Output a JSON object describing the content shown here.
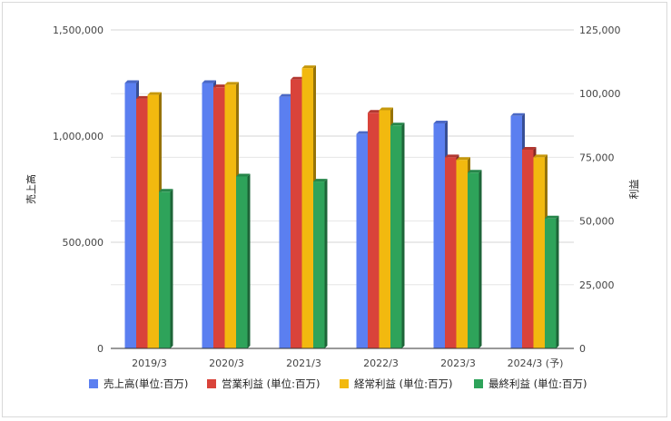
{
  "chart_data": {
    "type": "bar",
    "categories": [
      "2019/3",
      "2020/3",
      "2021/3",
      "2022/3",
      "2023/3",
      "2024/3 (予)"
    ],
    "left_axis": {
      "label": "売上高",
      "ylim": [
        0,
        1500000
      ],
      "ticks": [
        "0",
        "500,000",
        "1,000,000",
        "1,500,000"
      ]
    },
    "right_axis": {
      "label": "利益",
      "ylim": [
        0,
        125000
      ],
      "ticks": [
        "0",
        "25,000",
        "50,000",
        "75,000",
        "100,000",
        "125,000"
      ]
    },
    "series": [
      {
        "name": "売上高(単位:百万)",
        "axis": "left",
        "color": "#5b7ff0",
        "values": [
          1250000,
          1250000,
          1185000,
          1010000,
          1060000,
          1095000
        ]
      },
      {
        "name": "営業利益 (単位:百万)",
        "axis": "right",
        "color": "#d9433a",
        "values": [
          98000,
          102500,
          105500,
          92500,
          75000,
          78000
        ]
      },
      {
        "name": "経常利益 (単位:百万)",
        "axis": "right",
        "color": "#f2b90f",
        "values": [
          99500,
          103500,
          110000,
          93500,
          74000,
          75000
        ]
      },
      {
        "name": "最終利益 (単位:百万)",
        "axis": "right",
        "color": "#2ea35a",
        "values": [
          61500,
          67500,
          65500,
          87500,
          69000,
          51000
        ]
      }
    ],
    "grid": true,
    "legend_position": "bottom",
    "style": "3d-bar"
  }
}
